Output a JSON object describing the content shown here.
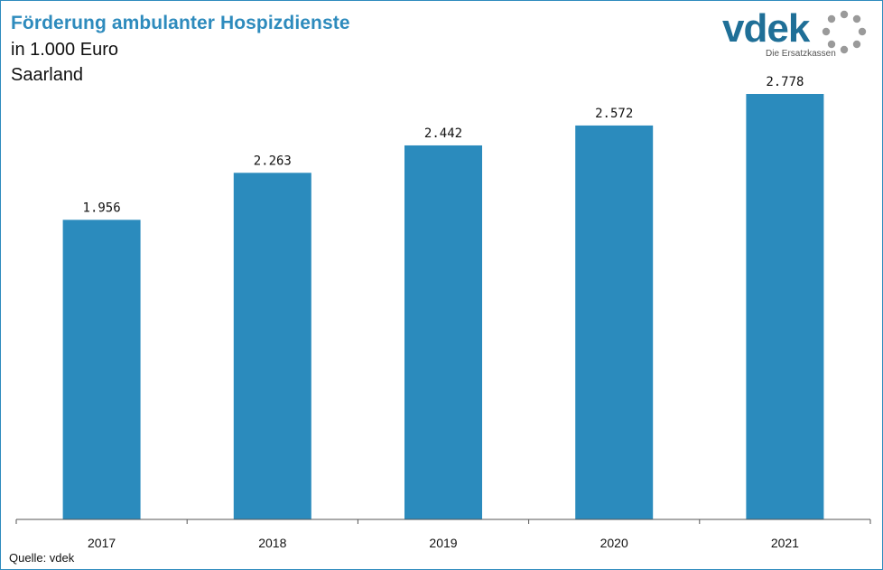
{
  "header": {
    "title": "Förderung ambulanter Hospizdienste",
    "unit": "in 1.000 Euro",
    "region": "Saarland"
  },
  "logo": {
    "word": "vdek",
    "tagline": "Die Ersatzkassen",
    "icon": "dotted-ring-icon"
  },
  "footer": {
    "source": "Quelle: vdek"
  },
  "colors": {
    "bar": "#2b8bbd",
    "title": "#2e8bbd",
    "logo": "#1f6f97",
    "axis": "#555555"
  },
  "chart_data": {
    "type": "bar",
    "categories": [
      "2017",
      "2018",
      "2019",
      "2020",
      "2021"
    ],
    "values": [
      1956,
      2263,
      2442,
      2572,
      2778
    ],
    "value_labels": [
      "1.956",
      "2.263",
      "2.442",
      "2.572",
      "2.778"
    ],
    "title": "Förderung ambulanter Hospizdienste",
    "xlabel": "",
    "ylabel": "",
    "ylim": [
      0,
      2800
    ],
    "grid": false,
    "legend": "none"
  }
}
